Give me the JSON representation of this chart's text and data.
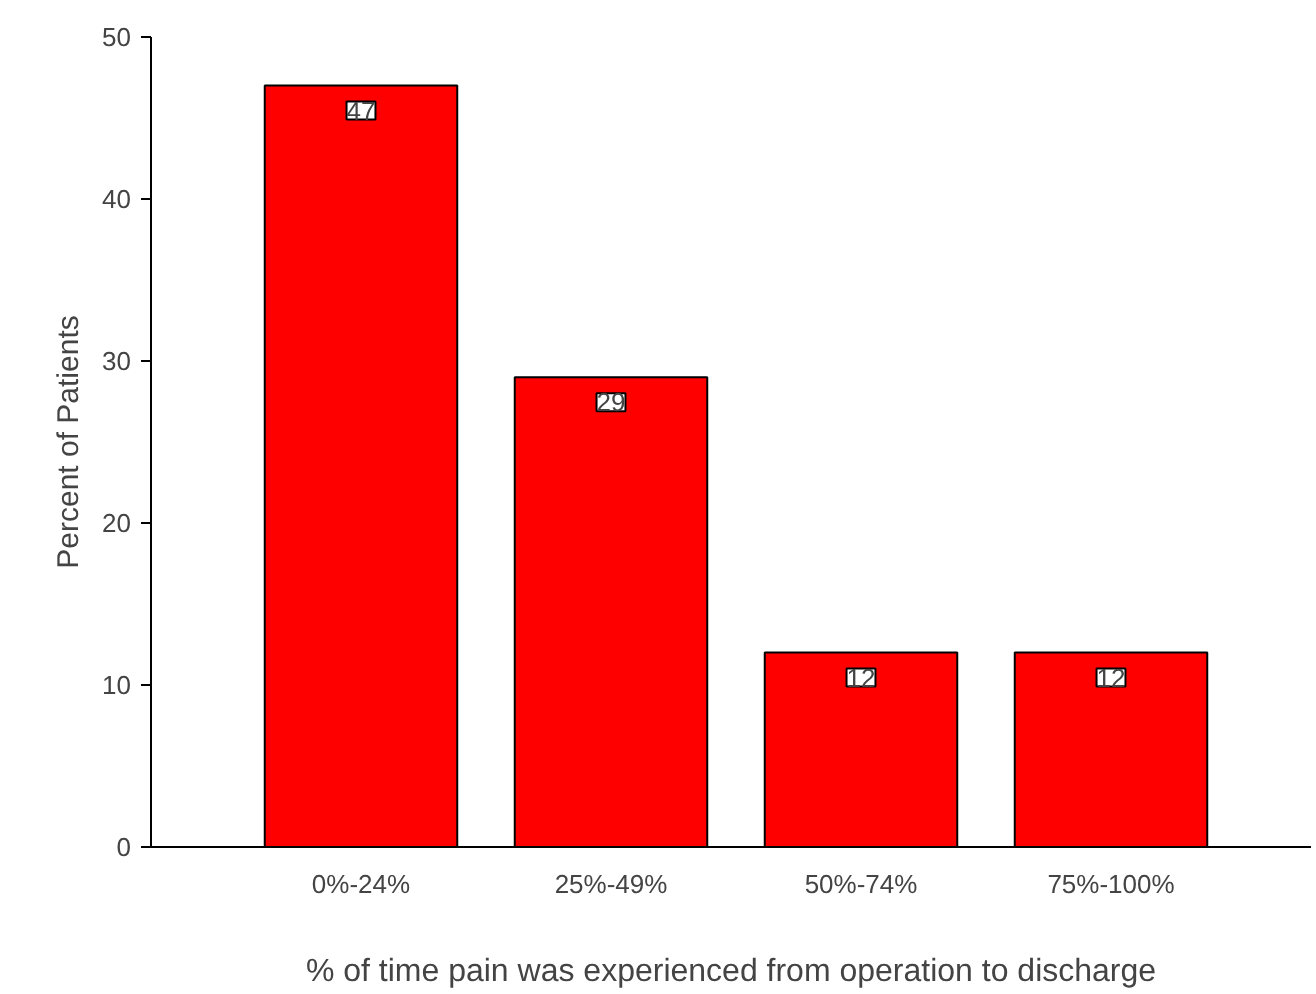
{
  "chart_data": {
    "type": "bar",
    "xlabel": "% of time pain was experienced from operation to discharge",
    "ylabel": "Percent of Patients",
    "categories": [
      "0%-24%",
      "25%-49%",
      "50%-74%",
      "75%-100%"
    ],
    "values": [
      47,
      29,
      12,
      12
    ],
    "color": "#ff0000",
    "data_labels": true,
    "ylim": [
      0,
      50
    ],
    "yticks": [
      0,
      10,
      20,
      30,
      40,
      50
    ],
    "grid": false
  }
}
